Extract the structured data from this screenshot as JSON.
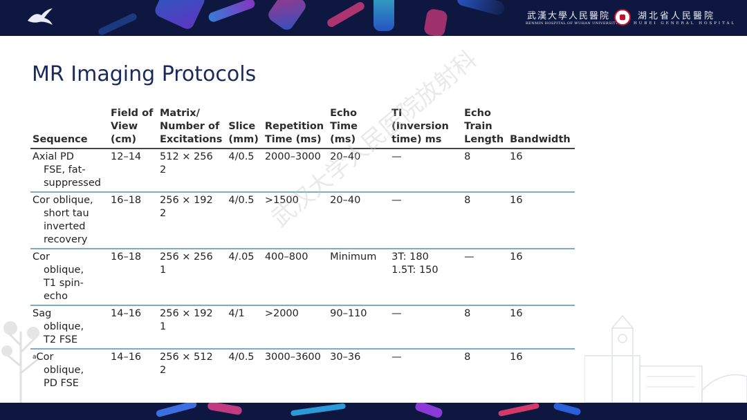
{
  "header": {
    "hospital1_cn": "武漢大學人民醫院",
    "hospital1_en": "RENMIN HOSPITAL OF WUHAN UNIVERSITY",
    "hospital2_cn": "湖北省人民醫院",
    "hospital2_en": "HUBEI GENERAL HOSPITAL"
  },
  "slide": {
    "title": "MR Imaging Protocols",
    "watermark": "武汉大学人民医院放射科"
  },
  "table": {
    "headers": [
      "Sequence",
      "Field of View (cm)",
      "Matrix/ Number of Excitations",
      "Slice (mm)",
      "Repetition Time (ms)",
      "Echo Time (ms)",
      "TI (Inversion time) ms",
      "Echo Train Length",
      "Bandwidth"
    ],
    "rows": [
      {
        "seq_first": "Axial PD",
        "seq_rest": [
          "FSE, fat-",
          "suppressed"
        ],
        "fov": "12–14",
        "matrix": "512 × 256",
        "nex": "2",
        "slice": "4/0.5",
        "tr": "2000–3000",
        "te": "20–40",
        "ti": [
          "—"
        ],
        "etl": "8",
        "bw": "16"
      },
      {
        "seq_first": "Cor oblique,",
        "seq_rest": [
          "short tau",
          "inverted",
          "recovery"
        ],
        "fov": "16–18",
        "matrix": "256 × 192",
        "nex": "2",
        "slice": "4/0.5",
        "tr": ">1500",
        "te": "20–40",
        "ti": [
          "—"
        ],
        "etl": "8",
        "bw": "16"
      },
      {
        "seq_first": "Cor",
        "seq_rest": [
          "oblique,",
          "T1 spin-",
          "echo"
        ],
        "fov": "16–18",
        "matrix": "256 × 256",
        "nex": "1",
        "slice": "4/.05",
        "tr": "400–800",
        "te": "Minimum",
        "ti": [
          "3T: 180",
          "1.5T: 150"
        ],
        "etl": "—",
        "bw": "16"
      },
      {
        "seq_first": "Sag",
        "seq_rest": [
          "oblique,",
          "T2 FSE"
        ],
        "fov": "14–16",
        "matrix": "256 × 192",
        "nex": "1",
        "slice": "4/1",
        "tr": ">2000",
        "te": "90–110",
        "ti": [
          "—"
        ],
        "etl": "8",
        "bw": "16"
      },
      {
        "sup": "a",
        "seq_first": "Cor",
        "seq_rest": [
          "oblique,",
          "PD FSE"
        ],
        "fov": "14–16",
        "matrix": "256 × 512",
        "nex": "2",
        "slice": "4/0.5",
        "tr": "3000–3600",
        "te": "30–36",
        "ti": [
          "—"
        ],
        "etl": "8",
        "bw": "16"
      }
    ]
  }
}
